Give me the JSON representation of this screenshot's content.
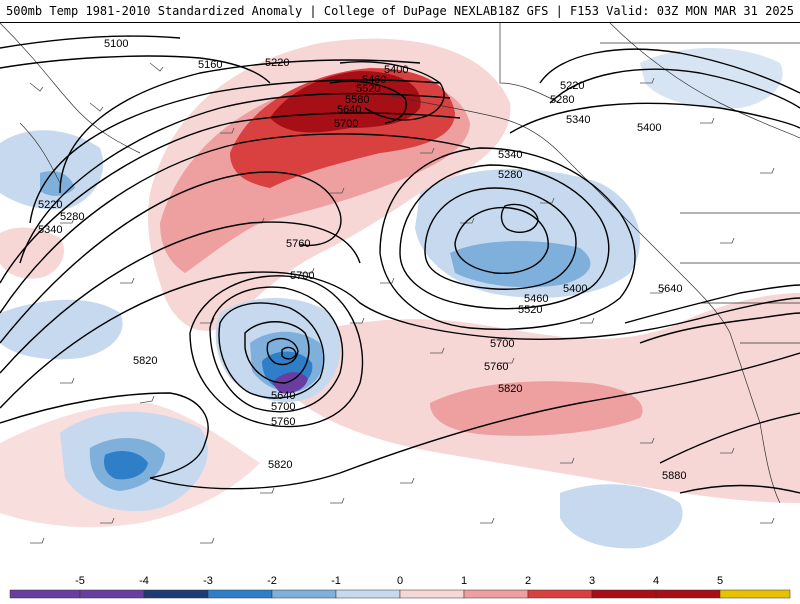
{
  "header": {
    "title": "500mb Temp 1981-2010 Standardized Anomaly | College of DuPage NEXLAB",
    "valid": "18Z GFS | F153 Valid: 03Z MON MAR 31 2025"
  },
  "colorbar": {
    "ticks": [
      "-5",
      "-4",
      "-3",
      "-2",
      "-1",
      "0",
      "1",
      "2",
      "3",
      "4",
      "5"
    ],
    "colors": [
      "#6a3ea1",
      "#1f3b73",
      "#2f7fc8",
      "#7fb0dc",
      "#c6d9ee",
      "#ffffff",
      "#f7d6d6",
      "#eea0a0",
      "#d94040",
      "#a50f15",
      "#e8c200"
    ]
  },
  "contour_labels": [
    {
      "id": "h5100",
      "text": "5100"
    },
    {
      "id": "h5160",
      "text": "5160"
    },
    {
      "id": "h5220a",
      "text": "5220"
    },
    {
      "id": "h5400a",
      "text": "5400"
    },
    {
      "id": "h5460a",
      "text": "5460"
    },
    {
      "id": "h5520a",
      "text": "5520"
    },
    {
      "id": "h5580",
      "text": "5580"
    },
    {
      "id": "h5640a",
      "text": "5640"
    },
    {
      "id": "h5700a",
      "text": "5700"
    },
    {
      "id": "h5220b",
      "text": "5220"
    },
    {
      "id": "h5280a",
      "text": "5280"
    },
    {
      "id": "h5340a",
      "text": "5340"
    },
    {
      "id": "h5760a",
      "text": "5760"
    },
    {
      "id": "h5700b",
      "text": "5700"
    },
    {
      "id": "h5220c",
      "text": "5220"
    },
    {
      "id": "h5280b",
      "text": "5280"
    },
    {
      "id": "h5340b",
      "text": "5340"
    },
    {
      "id": "h5400b",
      "text": "5400"
    },
    {
      "id": "h5340c",
      "text": "5340"
    },
    {
      "id": "h5280c",
      "text": "5280"
    },
    {
      "id": "h5400c",
      "text": "5400"
    },
    {
      "id": "h5460b",
      "text": "5460"
    },
    {
      "id": "h5520b",
      "text": "5520"
    },
    {
      "id": "h5640b",
      "text": "5640"
    },
    {
      "id": "h5700c",
      "text": "5700"
    },
    {
      "id": "h5760b",
      "text": "5760"
    },
    {
      "id": "h5820a",
      "text": "5820"
    },
    {
      "id": "h5640c",
      "text": "5640"
    },
    {
      "id": "h5700d",
      "text": "5700"
    },
    {
      "id": "h5760c",
      "text": "5760"
    },
    {
      "id": "h5820b",
      "text": "5820"
    },
    {
      "id": "h5820c",
      "text": "5820"
    },
    {
      "id": "h5880",
      "text": "5880"
    }
  ]
}
